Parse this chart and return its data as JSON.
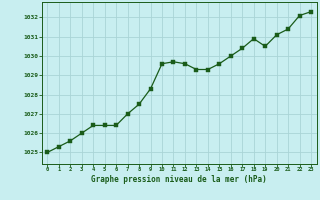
{
  "x": [
    0,
    1,
    2,
    3,
    4,
    5,
    6,
    7,
    8,
    9,
    10,
    11,
    12,
    13,
    14,
    15,
    16,
    17,
    18,
    19,
    20,
    21,
    22,
    23
  ],
  "y": [
    1025.0,
    1025.3,
    1025.6,
    1026.0,
    1026.4,
    1026.4,
    1026.4,
    1027.0,
    1027.5,
    1028.3,
    1029.6,
    1029.7,
    1029.6,
    1029.3,
    1029.3,
    1029.6,
    1030.0,
    1030.4,
    1030.9,
    1030.5,
    1031.1,
    1031.4,
    1032.1,
    1032.3
  ],
  "line_color": "#1a5c1a",
  "marker_color": "#1a5c1a",
  "bg_color": "#c8eef0",
  "grid_color": "#aad4d6",
  "xlabel": "Graphe pression niveau de la mer (hPa)",
  "xlabel_color": "#1a5c1a",
  "tick_color": "#1a5c1a",
  "yticks": [
    1025,
    1026,
    1027,
    1028,
    1029,
    1030,
    1031,
    1032
  ],
  "ylim": [
    1024.4,
    1032.8
  ],
  "xlim": [
    -0.5,
    23.5
  ]
}
